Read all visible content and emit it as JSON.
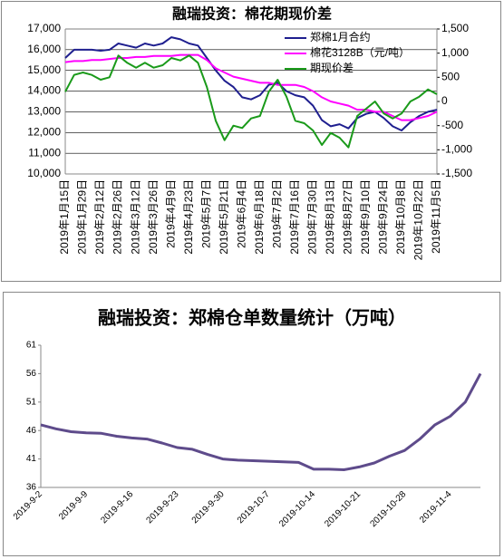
{
  "chart_data": [
    {
      "type": "line",
      "title": "融瑞投资：棉花期现价差",
      "categories": [
        "2019年1月15日",
        null,
        "2019年1月29日",
        null,
        "2019年2月12日",
        null,
        "2019年2月26日",
        null,
        "2019年3月12日",
        null,
        "2019年3月26日",
        null,
        "2019年4月9日",
        null,
        "2019年4月23日",
        null,
        "2019年5月7日",
        null,
        "2019年5月21日",
        null,
        "2019年6月4日",
        null,
        "2019年6月18日",
        null,
        "2019年7月2日",
        null,
        "2019年7月16日",
        null,
        "2019年7月30日",
        null,
        "2019年8月13日",
        null,
        "2019年8月27日",
        null,
        "2019年9月10日",
        null,
        "2019年9月24日",
        null,
        "2019年10月8日",
        null,
        "2019年10月22日",
        null,
        "2019年11月5日"
      ],
      "series": [
        {
          "name": "郑棉1月合约",
          "color": "#1f1f8f",
          "values": [
            15600,
            16000,
            16000,
            16000,
            15950,
            16000,
            16300,
            16200,
            16100,
            16300,
            16200,
            16300,
            16600,
            16500,
            16300,
            16200,
            15600,
            15000,
            14500,
            14200,
            13700,
            13600,
            13800,
            14300,
            14400,
            14000,
            13800,
            13700,
            13300,
            12600,
            12300,
            12400,
            12200,
            12700,
            12900,
            13000,
            12700,
            12300,
            12100,
            12500,
            12800,
            13000,
            13100
          ]
        },
        {
          "name": "棉花3128B（元/吨）",
          "color": "#ff00ff",
          "values": [
            15400,
            15450,
            15450,
            15500,
            15500,
            15550,
            15600,
            15600,
            15650,
            15650,
            15700,
            15700,
            15700,
            15750,
            15750,
            15750,
            15500,
            15100,
            14900,
            14700,
            14600,
            14500,
            14400,
            14400,
            14300,
            14300,
            14300,
            14200,
            14000,
            13700,
            13500,
            13400,
            13300,
            13100,
            13100,
            13000,
            13000,
            12800,
            12600,
            12600,
            12700,
            12800,
            13000
          ]
        },
        {
          "name": "期现价差",
          "color": "#1a9a1a",
          "axis": "y2",
          "values": [
            200,
            550,
            600,
            550,
            450,
            500,
            950,
            800,
            700,
            800,
            700,
            750,
            900,
            850,
            950,
            800,
            300,
            -400,
            -800,
            -500,
            -550,
            -350,
            -300,
            200,
            450,
            100,
            -400,
            -450,
            -600,
            -900,
            -650,
            -750,
            -950,
            -300,
            -150,
            0,
            -250,
            -350,
            -250,
            0,
            100,
            250,
            150
          ]
        }
      ],
      "ylim": [
        10000,
        17000
      ],
      "yticks": [
        {
          "value": 10000,
          "label": "10,000"
        },
        {
          "value": 11000,
          "label": "11,000"
        },
        {
          "value": 12000,
          "label": "12,000"
        },
        {
          "value": 13000,
          "label": "13,000"
        },
        {
          "value": 14000,
          "label": "14,000"
        },
        {
          "value": 15000,
          "label": "15,000"
        },
        {
          "value": 16000,
          "label": "16,000"
        },
        {
          "value": 17000,
          "label": "17,000"
        }
      ],
      "y2lim": [
        -1500,
        1500
      ],
      "y2ticks": [
        {
          "value": -1500,
          "label": "-1,500"
        },
        {
          "value": -1000,
          "label": "-1,000"
        },
        -500,
        0,
        500,
        {
          "value": 1000,
          "label": "1,000"
        },
        {
          "value": 1500,
          "label": "1,500"
        }
      ],
      "grid": true,
      "legend": "upper right"
    },
    {
      "type": "line",
      "title": "融瑞投资：郑棉仓单数量统计（万吨）",
      "categories": [
        "2019-9-2",
        null,
        null,
        "2019-9-9",
        null,
        null,
        "2019-9-16",
        null,
        null,
        "2019-9-23",
        null,
        null,
        "2019-9-30",
        null,
        null,
        "2019-10-7",
        null,
        null,
        "2019-10-14",
        null,
        null,
        "2019-10-21",
        null,
        null,
        "2019-10-28",
        null,
        null,
        "2019-11-4",
        null,
        null
      ],
      "series": [
        {
          "name": null,
          "color": "#5e4b8b",
          "values": [
            47.0,
            46.3,
            45.8,
            45.6,
            45.5,
            45.0,
            44.7,
            44.5,
            43.8,
            43.0,
            42.7,
            41.8,
            41.0,
            40.8,
            40.7,
            40.6,
            40.5,
            40.4,
            39.2,
            39.2,
            39.1,
            39.6,
            40.3,
            41.5,
            42.5,
            44.5,
            47.0,
            48.5,
            51.0,
            56.0
          ]
        }
      ],
      "ylim": [
        36,
        61
      ],
      "yticks": [
        36,
        41,
        46,
        51,
        56,
        61
      ],
      "grid": false
    }
  ]
}
